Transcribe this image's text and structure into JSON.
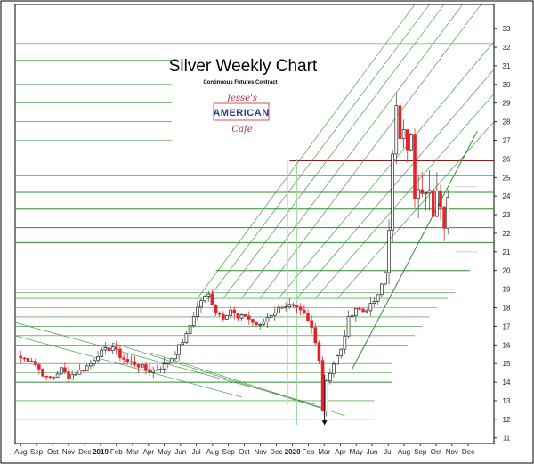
{
  "chart_data": {
    "type": "candlestick",
    "title": "Silver Weekly Chart",
    "subtitle": "Continuous Futures Contract",
    "logo": {
      "top_script": "Jesse's",
      "main_text": "AMERICAN",
      "bottom_script": "Cafe"
    },
    "x_ticks": [
      {
        "label": "Aug",
        "w": 0
      },
      {
        "label": "Sep",
        "w": 4.3
      },
      {
        "label": "Oct",
        "w": 8.7
      },
      {
        "label": "Nov",
        "w": 13
      },
      {
        "label": "Dec",
        "w": 17.4
      },
      {
        "label": "2019",
        "w": 21.7,
        "bold": true
      },
      {
        "label": "Feb",
        "w": 26
      },
      {
        "label": "Mar",
        "w": 30.4
      },
      {
        "label": "Apr",
        "w": 34.7
      },
      {
        "label": "May",
        "w": 39
      },
      {
        "label": "Jun",
        "w": 43.4
      },
      {
        "label": "Jul",
        "w": 47.7
      },
      {
        "label": "Aug",
        "w": 52.1
      },
      {
        "label": "Sep",
        "w": 56.4
      },
      {
        "label": "Oct",
        "w": 60.7
      },
      {
        "label": "Nov",
        "w": 65.1
      },
      {
        "label": "Dec",
        "w": 69.4
      },
      {
        "label": "2020",
        "w": 73.8,
        "bold": true
      },
      {
        "label": "Feb",
        "w": 78.1
      },
      {
        "label": "Mar",
        "w": 82.4
      },
      {
        "label": "Apr",
        "w": 86.8
      },
      {
        "label": "May",
        "w": 91.1
      },
      {
        "label": "Jun",
        "w": 95.4
      },
      {
        "label": "Jul",
        "w": 99.8
      },
      {
        "label": "Aug",
        "w": 104.1
      },
      {
        "label": "Sep",
        "w": 108.5
      },
      {
        "label": "Oct",
        "w": 112.8
      },
      {
        "label": "Nov",
        "w": 117.1
      },
      {
        "label": "Dec",
        "w": 121.5
      }
    ],
    "y_range": [
      10.7,
      34.3
    ],
    "y_ticks": [
      11,
      12,
      13,
      14,
      15,
      16,
      17,
      18,
      19,
      20,
      21,
      22,
      23,
      24,
      25,
      26,
      27,
      28,
      29,
      30,
      31,
      32,
      33
    ],
    "x_range_weeks": [
      -1.5,
      128.5
    ],
    "price_anchors": [
      [
        0,
        15.3
      ],
      [
        3,
        15.2
      ],
      [
        5,
        14.7
      ],
      [
        7,
        14.2
      ],
      [
        9,
        14.3
      ],
      [
        11,
        14.7
      ],
      [
        13,
        14.3
      ],
      [
        15,
        14.5
      ],
      [
        17,
        14.7
      ],
      [
        19,
        15.0
      ],
      [
        21,
        15.5
      ],
      [
        23,
        15.7
      ],
      [
        25,
        15.9
      ],
      [
        27,
        15.4
      ],
      [
        29,
        15.1
      ],
      [
        31,
        15.0
      ],
      [
        33,
        14.8
      ],
      [
        35,
        14.6
      ],
      [
        37,
        14.7
      ],
      [
        39,
        14.9
      ],
      [
        41,
        15.3
      ],
      [
        43,
        15.9
      ],
      [
        45,
        16.5
      ],
      [
        47,
        17.6
      ],
      [
        49,
        18.4
      ],
      [
        51,
        18.7
      ],
      [
        53,
        17.8
      ],
      [
        55,
        17.5
      ],
      [
        57,
        17.9
      ],
      [
        59,
        17.4
      ],
      [
        61,
        17.6
      ],
      [
        63,
        17.2
      ],
      [
        65,
        17.0
      ],
      [
        67,
        17.5
      ],
      [
        69,
        17.8
      ],
      [
        71,
        18.1
      ],
      [
        73,
        18.1
      ],
      [
        75,
        17.9
      ],
      [
        77,
        17.6
      ],
      [
        79,
        16.9
      ],
      [
        81,
        15.3
      ],
      [
        82,
        12.5
      ],
      [
        83,
        14.1
      ],
      [
        85,
        15.0
      ],
      [
        87,
        15.7
      ],
      [
        89,
        17.4
      ],
      [
        91,
        18.0
      ],
      [
        93,
        17.8
      ],
      [
        95,
        18.1
      ],
      [
        97,
        18.6
      ],
      [
        99,
        19.9
      ],
      [
        100,
        22.5
      ],
      [
        101,
        26.0
      ],
      [
        102,
        28.5
      ],
      [
        103,
        27.3
      ],
      [
        104,
        28.0
      ],
      [
        105,
        26.8
      ],
      [
        106,
        27.1
      ],
      [
        107,
        23.7
      ],
      [
        108,
        24.2
      ],
      [
        109,
        23.8
      ],
      [
        110,
        24.4
      ],
      [
        111,
        24.0
      ],
      [
        112,
        23.2
      ],
      [
        113,
        24.7
      ],
      [
        114,
        23.8
      ],
      [
        115,
        22.7
      ],
      [
        116,
        23.9
      ]
    ],
    "volatility_seed": 7,
    "colors": {
      "up_candle": "#ffffff",
      "down_candle": "#e8202a",
      "candle_outline": "#000000",
      "green_line": "#2e8b2e",
      "pale_green_line": "#9bd59b",
      "dark_red_line": "#8b1a1a",
      "pink_line": "#e89aa3",
      "grid_gray": "#cccccc"
    },
    "horizontal_levels": [
      {
        "y": 32.2,
        "w1": -1.5,
        "w2": 128.5,
        "style": "green-thin"
      },
      {
        "y": 31.3,
        "w1": -1.5,
        "w2": 41,
        "style": "green-thin"
      },
      {
        "y": 30.0,
        "w1": -1.5,
        "w2": 41,
        "style": "green-thin"
      },
      {
        "y": 29.0,
        "w1": -1.5,
        "w2": 41,
        "style": "green-thin"
      },
      {
        "y": 28.0,
        "w1": -1.5,
        "w2": 41,
        "style": "green-thin"
      },
      {
        "y": 27.0,
        "w1": -1.5,
        "w2": 41,
        "style": "green-thin"
      },
      {
        "y": 26.0,
        "w1": -1.5,
        "w2": 100,
        "style": "green-thin"
      },
      {
        "y": 25.1,
        "w1": -1.5,
        "w2": 128.5,
        "style": "green"
      },
      {
        "y": 24.2,
        "w1": -1.5,
        "w2": 128.5,
        "style": "green"
      },
      {
        "y": 23.3,
        "w1": -1.5,
        "w2": 128.5,
        "style": "green"
      },
      {
        "y": 22.3,
        "w1": -1.5,
        "w2": 128.5,
        "style": "green"
      },
      {
        "y": 21.5,
        "w1": -1.5,
        "w2": 128.5,
        "style": "green"
      },
      {
        "y": 20.0,
        "w1": 53,
        "w2": 122,
        "style": "green"
      },
      {
        "y": 19.0,
        "w1": -1.5,
        "w2": 118,
        "style": "green"
      },
      {
        "y": 18.8,
        "w1": -1.5,
        "w2": 118,
        "style": "green-thin"
      },
      {
        "y": 18.5,
        "w1": -1.5,
        "w2": 116,
        "style": "green-thin"
      },
      {
        "y": 18.0,
        "w1": -1.5,
        "w2": 113,
        "style": "green-thin"
      },
      {
        "y": 17.5,
        "w1": -1.5,
        "w2": 111,
        "style": "green-thin"
      },
      {
        "y": 17.0,
        "w1": -1.5,
        "w2": 109,
        "style": "green-thin"
      },
      {
        "y": 16.5,
        "w1": -1.5,
        "w2": 107,
        "style": "green-thin"
      },
      {
        "y": 16.0,
        "w1": -1.5,
        "w2": 105,
        "style": "green-thin"
      },
      {
        "y": 15.5,
        "w1": -1.5,
        "w2": 103,
        "style": "green-thin"
      },
      {
        "y": 15.0,
        "w1": -1.5,
        "w2": 101,
        "style": "green-thin"
      },
      {
        "y": 14.5,
        "w1": -1.5,
        "w2": 101,
        "style": "green-thin"
      },
      {
        "y": 14.0,
        "w1": -1.5,
        "w2": 101,
        "style": "green"
      },
      {
        "y": 13.0,
        "w1": -1.5,
        "w2": 96,
        "style": "green-thin"
      },
      {
        "y": 12.0,
        "w1": -1.5,
        "w2": 96,
        "style": "green-thin"
      },
      {
        "y": 19.0,
        "w1": 100,
        "w2": 118,
        "style": "pink"
      },
      {
        "y": 25.9,
        "w1": 73,
        "w2": 128.5,
        "style": "dark-red"
      },
      {
        "y": 21.0,
        "w1": 118,
        "w2": 124,
        "style": "gray"
      },
      {
        "y": 22.5,
        "w1": 118,
        "w2": 124,
        "style": "gray"
      },
      {
        "y": 24.5,
        "w1": 118,
        "w2": 124,
        "style": "gray"
      }
    ],
    "diagonal_lines": [
      {
        "w1": 48,
        "y1": 18.5,
        "w2": 107,
        "y2": 34.3,
        "style": "green-thin"
      },
      {
        "w1": 51,
        "y1": 18.5,
        "w2": 111,
        "y2": 34.3,
        "style": "green-thin"
      },
      {
        "w1": 55,
        "y1": 18.5,
        "w2": 115,
        "y2": 34.3,
        "style": "green-thin"
      },
      {
        "w1": 60,
        "y1": 18.5,
        "w2": 120,
        "y2": 34.3,
        "style": "green-thin"
      },
      {
        "w1": 65,
        "y1": 18.5,
        "w2": 125,
        "y2": 34.3,
        "style": "green-thin"
      },
      {
        "w1": 70,
        "y1": 18.5,
        "w2": 128.5,
        "y2": 32.3,
        "style": "green-thin"
      },
      {
        "w1": 75,
        "y1": 18.5,
        "w2": 128.5,
        "y2": 30.8,
        "style": "green-thin"
      },
      {
        "w1": 80,
        "y1": 18.5,
        "w2": 128.5,
        "y2": 29.5,
        "style": "green-thin"
      },
      {
        "w1": 86,
        "y1": 18.5,
        "w2": 128.5,
        "y2": 28.0,
        "style": "green-thin"
      },
      {
        "w1": 90,
        "y1": 14.7,
        "w2": 124,
        "y2": 27.5,
        "style": "green"
      },
      {
        "w1": -1.5,
        "y1": 17.2,
        "w2": 80,
        "y2": 12.8,
        "style": "green-thin"
      },
      {
        "w1": -1.5,
        "y1": 16.5,
        "w2": 60,
        "y2": 13.2,
        "style": "green-thin"
      },
      {
        "w1": 25,
        "y1": 16.1,
        "w2": 88,
        "y2": 12.2,
        "style": "green-thin"
      },
      {
        "w1": 35,
        "y1": 15.6,
        "w2": 82,
        "y2": 12.6,
        "style": "green-thin"
      }
    ],
    "vertical_lines": [
      {
        "w": 72.5,
        "y1": 12.8,
        "y2": 25.9,
        "style": "gray"
      },
      {
        "w": 75,
        "y1": 11.7,
        "y2": 26.0,
        "style": "pale-green"
      }
    ],
    "arrow": {
      "w": 82.5,
      "y_from": 14.4,
      "y_to": 11.7
    }
  }
}
